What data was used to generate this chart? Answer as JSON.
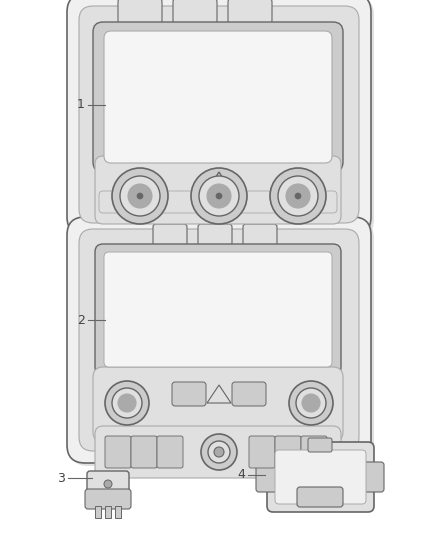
{
  "background_color": "#ffffff",
  "fig_width": 4.38,
  "fig_height": 5.33,
  "dpi": 100,
  "line_color": "#aaaaaa",
  "dark_line_color": "#666666",
  "fill_light": "#f0f0f0",
  "fill_mid": "#e0e0e0",
  "fill_dark": "#cccccc",
  "fill_darker": "#aaaaaa",
  "screen_color": "#f5f5f5",
  "label_color": "#444444"
}
